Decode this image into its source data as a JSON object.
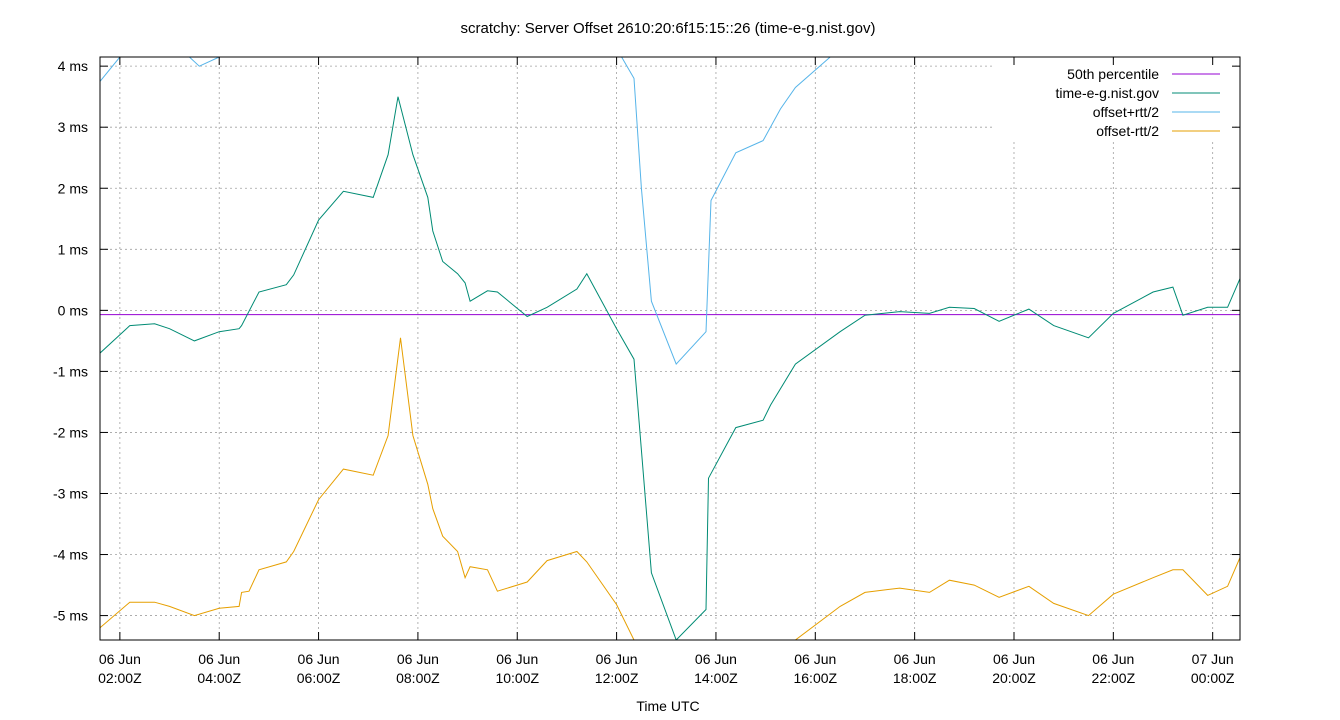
{
  "chart_data": {
    "type": "line",
    "title": "scratchy: Server Offset 2610:20:6f15:15::26 (time-e-g.nist.gov)",
    "xlabel": "Time UTC",
    "ylabel": "",
    "x_unit": "hours since 06 Jun 00:00Z",
    "xlim": [
      1.6,
      24.55
    ],
    "ylim": [
      -5.4,
      4.15
    ],
    "y_ticks": [
      -5,
      -4,
      -3,
      -2,
      -1,
      0,
      1,
      2,
      3,
      4
    ],
    "y_tick_labels": [
      "-5 ms",
      "-4 ms",
      "-3 ms",
      "-2 ms",
      "-1 ms",
      "0 ms",
      "1 ms",
      "2 ms",
      "3 ms",
      "4 ms"
    ],
    "x_ticks": [
      2,
      4,
      6,
      8,
      10,
      12,
      14,
      16,
      18,
      20,
      22,
      24
    ],
    "x_tick_labels": [
      [
        "06 Jun",
        "02:00Z"
      ],
      [
        "06 Jun",
        "04:00Z"
      ],
      [
        "06 Jun",
        "06:00Z"
      ],
      [
        "06 Jun",
        "08:00Z"
      ],
      [
        "06 Jun",
        "10:00Z"
      ],
      [
        "06 Jun",
        "12:00Z"
      ],
      [
        "06 Jun",
        "14:00Z"
      ],
      [
        "06 Jun",
        "16:00Z"
      ],
      [
        "06 Jun",
        "18:00Z"
      ],
      [
        "06 Jun",
        "20:00Z"
      ],
      [
        "06 Jun",
        "22:00Z"
      ],
      [
        "07 Jun",
        "00:00Z"
      ]
    ],
    "grid": true,
    "legend_position": "top-right",
    "series": [
      {
        "name": "50th percentile",
        "color": "#9400d3",
        "x": [
          1.6,
          24.55
        ],
        "y": [
          -0.07,
          -0.07
        ]
      },
      {
        "name": "time-e-g.nist.gov",
        "color": "#008b74",
        "x": [
          1.6,
          2.2,
          2.7,
          3.0,
          3.5,
          4.0,
          4.4,
          4.45,
          4.8,
          5.35,
          5.5,
          6.0,
          6.5,
          7.1,
          7.4,
          7.6,
          7.9,
          8.2,
          8.3,
          8.5,
          8.8,
          8.95,
          9.05,
          9.4,
          9.6,
          10.2,
          10.6,
          11.2,
          11.4,
          12.0,
          12.35,
          12.7,
          13.2,
          13.8,
          13.85,
          14.4,
          14.95,
          15.1,
          15.6,
          16.5,
          17.0,
          17.7,
          18.3,
          18.7,
          19.2,
          19.7,
          20.3,
          20.8,
          21.5,
          22.0,
          22.8,
          23.2,
          23.4,
          23.9,
          24.3,
          24.55
        ],
        "y": [
          -0.7,
          -0.25,
          -0.22,
          -0.3,
          -0.5,
          -0.35,
          -0.3,
          -0.25,
          0.3,
          0.42,
          0.58,
          1.48,
          1.95,
          1.85,
          2.55,
          3.5,
          2.55,
          1.85,
          1.3,
          0.8,
          0.6,
          0.45,
          0.15,
          0.32,
          0.3,
          -0.1,
          0.05,
          0.35,
          0.6,
          -0.3,
          -0.8,
          -4.3,
          -5.4,
          -4.9,
          -2.75,
          -1.92,
          -1.8,
          -1.55,
          -0.88,
          -0.35,
          -0.08,
          -0.02,
          -0.05,
          0.05,
          0.03,
          -0.18,
          0.02,
          -0.25,
          -0.45,
          -0.05,
          0.3,
          0.38,
          -0.08,
          0.05,
          0.05,
          0.52
        ]
      },
      {
        "name": "offset+rtt/2",
        "color": "#56b4e9",
        "x": [
          1.6,
          2.0,
          3.4,
          3.6,
          4.0,
          12.1,
          12.35,
          12.5,
          12.7,
          13.2,
          13.8,
          13.9,
          14.4,
          14.95,
          15.3,
          15.6,
          16.3
        ],
        "y": [
          3.75,
          4.15,
          4.15,
          4.0,
          4.15,
          4.15,
          3.8,
          2.0,
          0.15,
          -0.88,
          -0.35,
          1.8,
          2.58,
          2.78,
          3.3,
          3.65,
          4.15
        ]
      },
      {
        "name": "offset-rtt/2",
        "color": "#e69f00",
        "x": [
          1.6,
          2.2,
          2.7,
          3.0,
          3.5,
          4.0,
          4.4,
          4.45,
          4.6,
          4.8,
          5.35,
          5.5,
          6.0,
          6.5,
          7.1,
          7.4,
          7.65,
          7.9,
          8.2,
          8.3,
          8.5,
          8.8,
          8.95,
          9.05,
          9.4,
          9.6,
          10.2,
          10.6,
          11.2,
          11.4,
          12.0,
          12.35,
          15.6,
          16.5,
          17.0,
          17.7,
          18.3,
          18.7,
          19.2,
          19.7,
          20.3,
          20.8,
          21.5,
          22.0,
          22.8,
          23.2,
          23.4,
          23.9,
          24.3,
          24.55
        ],
        "y": [
          -5.2,
          -4.78,
          -4.78,
          -4.85,
          -5.0,
          -4.88,
          -4.85,
          -4.62,
          -4.6,
          -4.25,
          -4.12,
          -3.95,
          -3.1,
          -2.6,
          -2.7,
          -2.05,
          -0.45,
          -2.05,
          -2.85,
          -3.25,
          -3.7,
          -3.95,
          -4.38,
          -4.2,
          -4.25,
          -4.6,
          -4.45,
          -4.1,
          -3.95,
          -4.12,
          -4.82,
          -5.4,
          -5.4,
          -4.85,
          -4.62,
          -4.55,
          -4.62,
          -4.42,
          -4.5,
          -4.7,
          -4.52,
          -4.8,
          -5.0,
          -4.65,
          -4.38,
          -4.25,
          -4.25,
          -4.67,
          -4.52,
          -4.05
        ]
      }
    ]
  }
}
